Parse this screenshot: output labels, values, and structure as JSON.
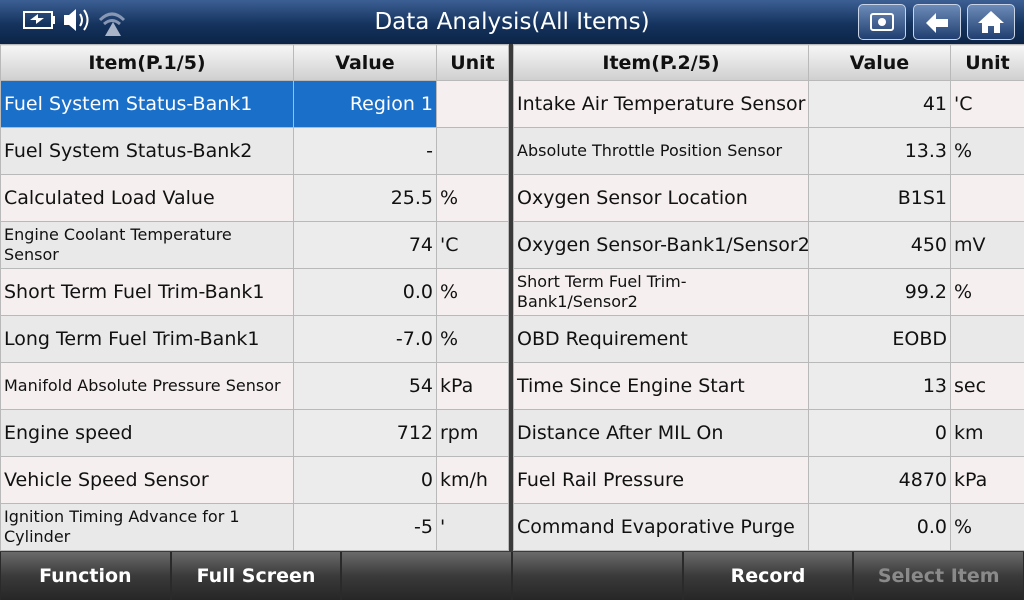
{
  "header": {
    "title": "Data Analysis(All Items)"
  },
  "tables": [
    {
      "columns": [
        "Item(P.1/5)",
        "Value",
        "Unit"
      ],
      "rows": [
        [
          "Fuel System Status-Bank1",
          "Region 1",
          null
        ],
        [
          "Fuel System Status-Bank2",
          "-",
          null
        ],
        [
          "Calculated Load Value",
          "25.5",
          "%"
        ],
        [
          "Engine Coolant Temperature Sensor",
          "74",
          "'C"
        ],
        [
          "Short Term Fuel Trim-Bank1",
          "0.0",
          "%"
        ],
        [
          "Long Term Fuel Trim-Bank1",
          "-7.0",
          "%"
        ],
        [
          "Manifold Absolute Pressure Sensor",
          "54",
          "kPa"
        ],
        [
          "Engine speed",
          "712",
          "rpm"
        ],
        [
          "Vehicle Speed Sensor",
          "0",
          "km/h"
        ],
        [
          "Ignition Timing Advance for 1 Cylinder",
          "-5",
          "'"
        ]
      ]
    },
    {
      "columns": [
        "Item(P.2/5)",
        "Value",
        "Unit"
      ],
      "rows": [
        [
          "Intake Air Temperature Sensor",
          "41",
          "'C"
        ],
        [
          "Absolute Throttle Position Sensor",
          "13.3",
          "%"
        ],
        [
          "Oxygen Sensor Location",
          "B1S1",
          null
        ],
        [
          "Oxygen Sensor-Bank1/Sensor2",
          "450",
          "mV"
        ],
        [
          "Short Term Fuel Trim-Bank1/Sensor2",
          "99.2",
          "%"
        ],
        [
          "OBD Requirement",
          "EOBD",
          null
        ],
        [
          "Time Since Engine Start",
          "13",
          "sec"
        ],
        [
          "Distance After MIL On",
          "0",
          "km"
        ],
        [
          "Fuel Rail Pressure",
          "4870",
          "kPa"
        ],
        [
          "Command Evaporative Purge",
          "0.0",
          "%"
        ]
      ]
    }
  ],
  "footer": {
    "buttons": [
      "Function",
      "Full Screen",
      "Record",
      "Select Item"
    ]
  }
}
